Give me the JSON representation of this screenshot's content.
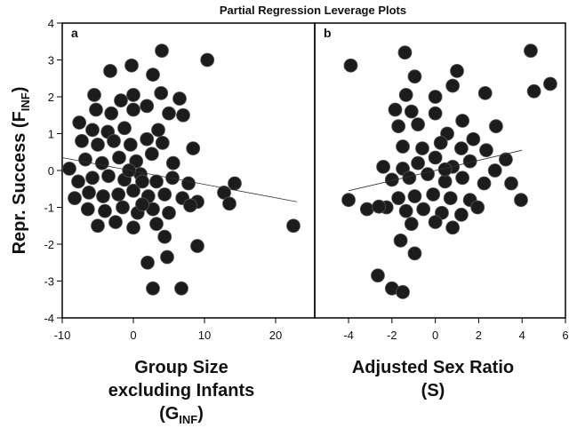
{
  "title": "Partial Regression Leverage Plots",
  "chart_data": [
    {
      "type": "scatter",
      "panel_label": "a",
      "ylabel": {
        "text": "Repr. Success (F",
        "sub": "INF",
        "after": ")"
      },
      "xlabel": {
        "lines": [
          "Group Size",
          "excluding Infants"
        ],
        "text": "(G",
        "sub": "INF",
        "after": ")"
      },
      "xlim": [
        -10,
        25.5
      ],
      "ylim": [
        -4,
        4
      ],
      "xticks": [
        -10,
        0,
        10,
        20
      ],
      "yticks": [
        -4,
        -3,
        -2,
        -1,
        0,
        1,
        2,
        3,
        4
      ],
      "color": "#1c1c1c",
      "x": [
        4,
        10.4,
        -0.25,
        -3.25,
        2.75,
        -5.5,
        3.9,
        6.5,
        0,
        -1.75,
        -7.6,
        -5.25,
        -3.1,
        0,
        1.9,
        5,
        -5.75,
        -3.6,
        -1.25,
        3.5,
        7,
        -7.25,
        -5,
        -2.75,
        -0.4,
        1.9,
        4.1,
        8.4,
        -9,
        -6.75,
        -4.4,
        -2,
        0.4,
        2.6,
        5.6,
        -7.75,
        -5.75,
        -3.5,
        -1.25,
        1,
        3.25,
        5.5,
        7.75,
        -8.25,
        -6.25,
        -4.25,
        -2.1,
        0,
        2.1,
        4.4,
        6.9,
        9,
        12.75,
        14.25,
        13.5,
        -6.4,
        -4,
        -1.5,
        0.6,
        2.75,
        5,
        8,
        -5,
        -2.5,
        0,
        3.25,
        4.4,
        22.5,
        9,
        2,
        4.75,
        2.75,
        6.75,
        1.25,
        -0.6,
        1.25
      ],
      "y": [
        3.25,
        3,
        2.85,
        2.7,
        2.6,
        2.05,
        2.1,
        1.95,
        2.05,
        1.9,
        1.3,
        1.65,
        1.55,
        1.65,
        1.75,
        1.55,
        1.1,
        1.05,
        1.15,
        1.1,
        1.5,
        0.8,
        0.7,
        0.8,
        0.7,
        0.85,
        0.75,
        0.6,
        0.05,
        0.3,
        0.2,
        0.35,
        0.25,
        0.45,
        0.2,
        -0.3,
        -0.2,
        -0.15,
        -0.25,
        -0.1,
        -0.3,
        -0.2,
        -0.35,
        -0.75,
        -0.6,
        -0.7,
        -0.65,
        -0.55,
        -0.7,
        -0.65,
        -0.75,
        -0.85,
        -0.6,
        -0.35,
        -0.9,
        -1.05,
        -1.1,
        -1,
        -1.15,
        -1.05,
        -1.15,
        -0.95,
        -1.5,
        -1.4,
        -1.55,
        -1.45,
        -1.8,
        -1.5,
        -2.05,
        -2.5,
        -2.35,
        -3.2,
        -3.2,
        -0.92,
        0,
        -0.3
      ],
      "fit_line": {
        "x": [
          -10,
          23
        ],
        "y": [
          0.35,
          -0.85
        ]
      }
    },
    {
      "type": "scatter",
      "panel_label": "b",
      "xlabel": {
        "lines": [
          "Adjusted Sex Ratio",
          "(S)"
        ]
      },
      "xlim": [
        -5.56,
        6
      ],
      "ylim": [
        -4,
        4
      ],
      "xticks": [
        -4,
        -2,
        0,
        2,
        4,
        6
      ],
      "color": "#1c1c1c",
      "x": [
        -3.9,
        -1.4,
        4.4,
        -0.95,
        1,
        0.8,
        5.3,
        4.55,
        2.3,
        -1.35,
        0,
        -1.85,
        -1.1,
        0,
        1.25,
        -0.8,
        -1.7,
        0.55,
        1.75,
        2.8,
        -1.5,
        -0.6,
        0.25,
        1.2,
        2.35,
        3.25,
        -2.4,
        -1.5,
        -0.8,
        0,
        0.8,
        1.6,
        2.75,
        -2,
        -1.2,
        -0.35,
        0.45,
        1.25,
        2.25,
        3.5,
        -4,
        -1.7,
        -0.95,
        -0.1,
        0.7,
        1.6,
        3.95,
        -3.15,
        -2.25,
        -1.35,
        -0.55,
        0.3,
        1.2,
        1.95,
        -1.1,
        0,
        0.8,
        -1.6,
        -0.95,
        -2.65,
        -2,
        -1.5,
        -2.6,
        0.45
      ],
      "y": [
        2.85,
        3.2,
        3.25,
        2.55,
        2.7,
        2.3,
        2.35,
        2.15,
        2.1,
        2.05,
        2,
        1.65,
        1.6,
        1.55,
        1.35,
        1.25,
        1.2,
        1,
        0.85,
        1.2,
        0.65,
        0.6,
        0.75,
        0.6,
        0.55,
        0.3,
        0.1,
        0.05,
        0.2,
        0.35,
        0.1,
        0.25,
        0,
        -0.25,
        -0.2,
        -0.1,
        -0.3,
        -0.2,
        -0.35,
        -0.35,
        -0.8,
        -0.75,
        -0.7,
        -0.65,
        -0.75,
        -0.8,
        -0.8,
        -1.05,
        -1,
        -1.1,
        -1.05,
        -1.15,
        -1.2,
        -1,
        -1.45,
        -1.4,
        -1.55,
        -1.9,
        -2.25,
        -2.85,
        -3.2,
        -3.3,
        -0.98,
        0.03
      ],
      "fit_line": {
        "x": [
          -4,
          4
        ],
        "y": [
          -0.55,
          0.55
        ]
      }
    }
  ]
}
